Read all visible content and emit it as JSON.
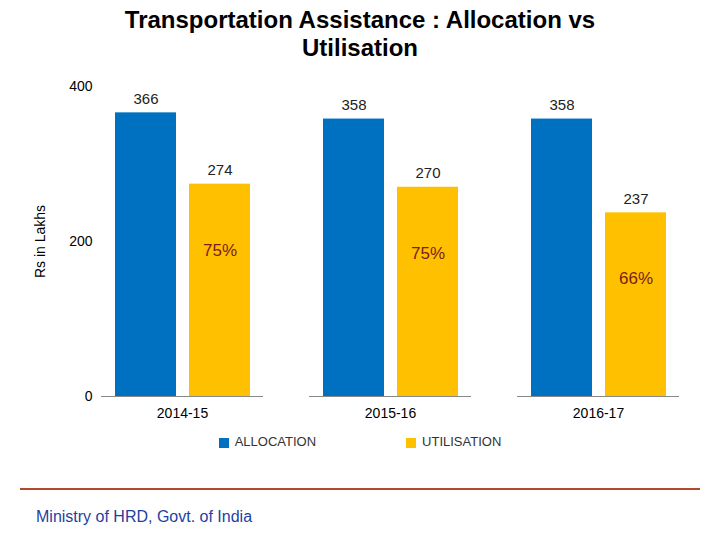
{
  "chart_data": {
    "type": "bar",
    "title": "Transportation Assistance : Allocation vs Utilisation",
    "ylabel": "Rs in Lakhs",
    "categories": [
      "2014-15",
      "2015-16",
      "2016-17"
    ],
    "series": [
      {
        "name": "ALLOCATION",
        "color": "#0070c0",
        "values": [
          366,
          358,
          358
        ]
      },
      {
        "name": "UTILISATION",
        "color": "#ffc000",
        "values": [
          274,
          270,
          237
        ],
        "annotations": [
          "75%",
          "75%",
          "66%"
        ]
      }
    ],
    "ylim": [
      0,
      400
    ],
    "yticks": [
      0,
      200,
      400
    ],
    "grid": false,
    "legend": "bottom",
    "data_labels": true,
    "caption": "Ministry of HRD, Govt. of India"
  }
}
